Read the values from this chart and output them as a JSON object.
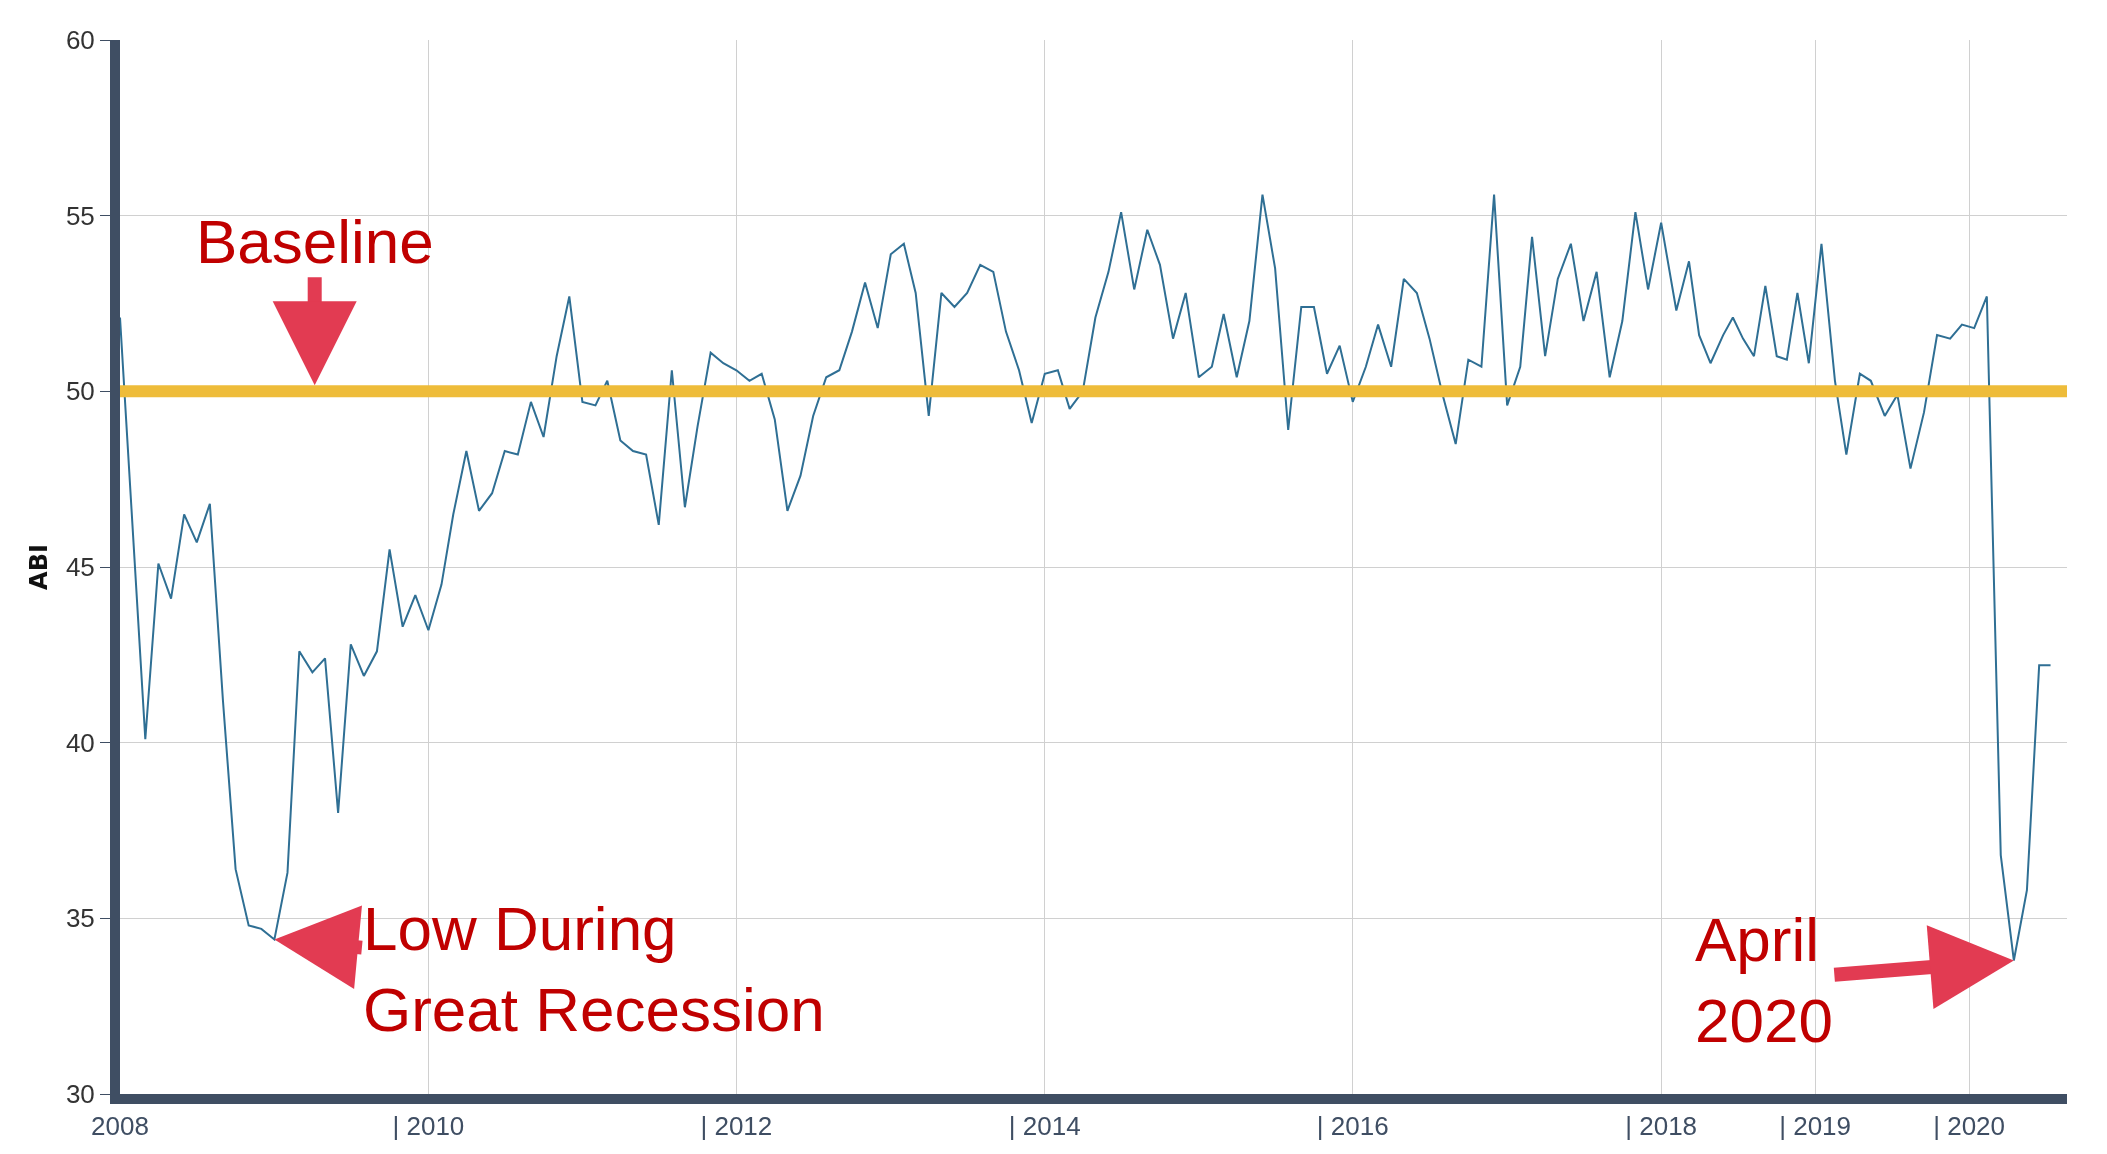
{
  "chart_data": {
    "type": "line",
    "ylabel": "ABI",
    "x": [
      "2008-01",
      "2008-03",
      "2008-04",
      "2008-05",
      "2008-06",
      "2008-07",
      "2008-08",
      "2008-09",
      "2008-10",
      "2008-11",
      "2008-12",
      "2009-01",
      "2009-02",
      "2009-03",
      "2009-04",
      "2009-05",
      "2009-06",
      "2009-07",
      "2009-08",
      "2009-09",
      "2009-10",
      "2009-11",
      "2009-12",
      "2010-01",
      "2010-02",
      "2010-03",
      "2010-04",
      "2010-05",
      "2010-06",
      "2010-07",
      "2010-08",
      "2010-09",
      "2010-10",
      "2010-11",
      "2010-12",
      "2011-01",
      "2011-02",
      "2011-03",
      "2011-04",
      "2011-05",
      "2011-06",
      "2011-07",
      "2011-08",
      "2011-09",
      "2011-10",
      "2011-11",
      "2011-12",
      "2012-01",
      "2012-02",
      "2012-03",
      "2012-04",
      "2012-05",
      "2012-06",
      "2012-07",
      "2012-08",
      "2012-09",
      "2012-10",
      "2012-11",
      "2012-12",
      "2013-01",
      "2013-02",
      "2013-03",
      "2013-04",
      "2013-05",
      "2013-06",
      "2013-07",
      "2013-08",
      "2013-09",
      "2013-10",
      "2013-11",
      "2013-12",
      "2014-01",
      "2014-02",
      "2014-03",
      "2014-04",
      "2014-05",
      "2014-06",
      "2014-07",
      "2014-08",
      "2014-09",
      "2014-10",
      "2014-11",
      "2014-12",
      "2015-01",
      "2015-02",
      "2015-03",
      "2015-04",
      "2015-05",
      "2015-06",
      "2015-07",
      "2015-08",
      "2015-09",
      "2015-10",
      "2015-11",
      "2015-12",
      "2016-01",
      "2016-02",
      "2016-03",
      "2016-04",
      "2016-05",
      "2016-06",
      "2016-07",
      "2016-08",
      "2016-09",
      "2016-10",
      "2016-11",
      "2016-12",
      "2017-01",
      "2017-02",
      "2017-03",
      "2017-04",
      "2017-05",
      "2017-06",
      "2017-07",
      "2017-08",
      "2017-09",
      "2017-10",
      "2017-11",
      "2017-12",
      "2018-01",
      "2018-02-06",
      "2018-03-08",
      "2018-04-01",
      "2018-04-28",
      "2018-05-28",
      "2018-06-20",
      "2018-07-14",
      "2018-08-09",
      "2018-09-05",
      "2018-10-02",
      "2018-10-26",
      "2018-11-20",
      "2018-12-17",
      "2019-01-16",
      "2019-02-17",
      "2019-03-16",
      "2019-04-17",
      "2019-05-13",
      "2019-06-15",
      "2019-07-15",
      "2019-08-15",
      "2019-09-16",
      "2019-10-17",
      "2019-11-17",
      "2019-12-15",
      "2020-01-13",
      "2020-02-12",
      "2020-03-16",
      "2020-04-16",
      "2020-05-17",
      "2020-06-15",
      "2020-07-12"
    ],
    "series": [
      {
        "color": "#2f6f94",
        "values": [
          52.1,
          40.1,
          45.1,
          44.1,
          46.5,
          45.7,
          46.8,
          41.2,
          36.4,
          34.8,
          34.7,
          34.4,
          36.3,
          42.6,
          42.0,
          42.4,
          38.0,
          42.8,
          41.9,
          42.6,
          45.5,
          43.3,
          44.2,
          43.2,
          44.5,
          46.5,
          48.3,
          46.6,
          47.1,
          48.3,
          48.2,
          49.7,
          48.7,
          51.0,
          52.7,
          49.7,
          49.6,
          50.3,
          48.6,
          48.3,
          48.2,
          46.2,
          50.6,
          46.7,
          49.0,
          51.1,
          50.8,
          50.6,
          50.3,
          50.5,
          49.2,
          46.6,
          47.6,
          49.3,
          50.4,
          50.6,
          51.7,
          53.1,
          51.8,
          53.9,
          54.2,
          52.8,
          49.3,
          52.8,
          52.4,
          52.8,
          53.6,
          53.4,
          51.7,
          50.6,
          49.1,
          50.5,
          50.6,
          49.5,
          50.0,
          52.1,
          53.4,
          55.1,
          52.9,
          54.6,
          53.6,
          51.5,
          52.8,
          50.4,
          50.7,
          52.2,
          50.4,
          52.0,
          55.6,
          53.5,
          48.9,
          52.4,
          52.4,
          50.5,
          51.3,
          49.7,
          50.7,
          51.9,
          50.7,
          53.2,
          52.8,
          51.5,
          49.9,
          48.5,
          50.9,
          50.7,
          55.6,
          49.6,
          50.7,
          54.4,
          51.0,
          53.2,
          54.2,
          52.0,
          53.4,
          50.4,
          52.0,
          55.1,
          52.9,
          54.8,
          52.3,
          53.7,
          51.6,
          50.8,
          51.6,
          52.1,
          51.5,
          51.0,
          53.0,
          51.0,
          50.9,
          52.8,
          50.8,
          54.2,
          50.3,
          48.2,
          50.5,
          50.3,
          49.3,
          49.9,
          47.8,
          49.4,
          51.6,
          51.5,
          51.9,
          51.8,
          52.7,
          36.8,
          33.8,
          35.8,
          42.2,
          42.2
        ]
      }
    ],
    "xlim": [
      "2008-01-01",
      "2020-08-20"
    ],
    "xticks": [
      {
        "value": "2008-01-01",
        "label": "2008"
      },
      {
        "value": "2010-01-01",
        "label": "| 2010"
      },
      {
        "value": "2012-01-01",
        "label": "| 2012"
      },
      {
        "value": "2014-01-01",
        "label": "| 2014"
      },
      {
        "value": "2016-01-01",
        "label": "| 2016"
      },
      {
        "value": "2018-01-01",
        "label": "| 2018"
      },
      {
        "value": "2019-01-01",
        "label": "| 2019"
      },
      {
        "value": "2020-01-01",
        "label": "| 2020"
      }
    ],
    "ylim": [
      30,
      60
    ],
    "yticks": [
      30,
      35,
      40,
      45,
      50,
      55,
      60
    ],
    "grid": true,
    "legend": false,
    "line_style": "solid",
    "ref_lines": [
      {
        "axis": "y",
        "value": 50,
        "color": "#eebc3a",
        "label": "Baseline"
      }
    ],
    "annotations": [
      {
        "text": "Low During\nGreat Recession",
        "x": "2009-01",
        "y": 34.4
      },
      {
        "text": "April\n2020",
        "x": "2020-04-16",
        "y": 33.8
      }
    ]
  }
}
